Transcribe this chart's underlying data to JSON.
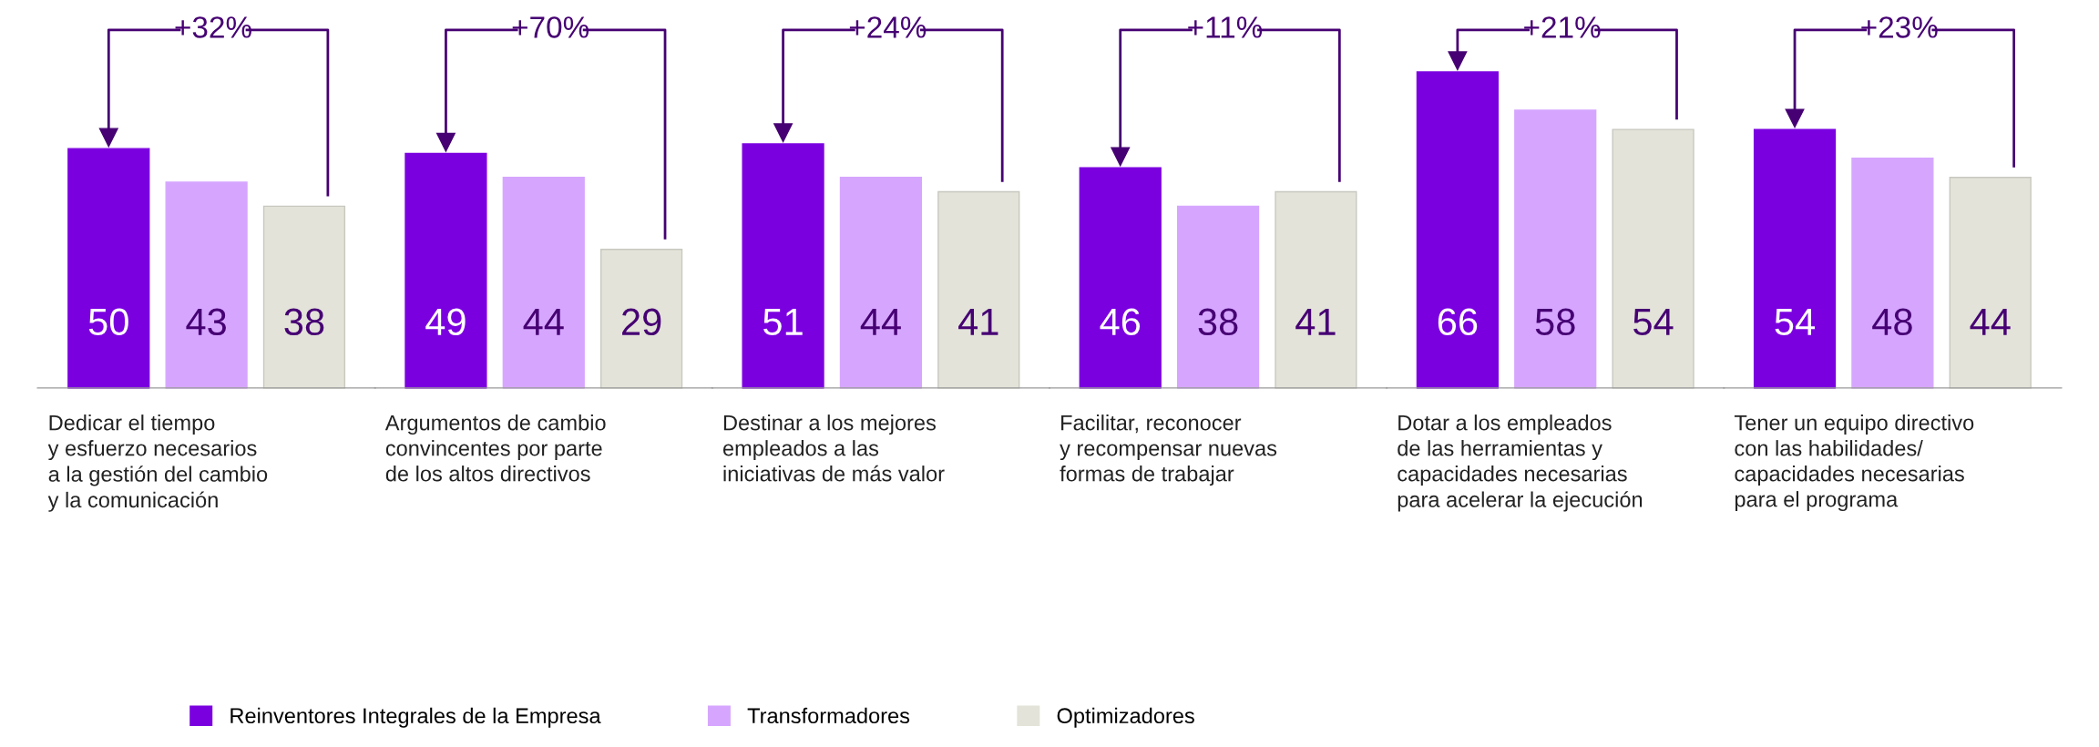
{
  "chart_data": {
    "type": "bar",
    "categories": [
      "Dedicar el tiempo\ny esfuerzo necesarios\na la gestión del cambio\ny la comunicación",
      "Argumentos de cambio\nconvincentes por parte\nde los altos directivos",
      "Destinar a los mejores\nempleados a las\niniciativas de más valor",
      "Facilitar, reconocer\ny recompensar nuevas\nformas de trabajar",
      "Dotar a los empleados\nde las herramientas y\ncapacidades necesarias\npara acelerar la ejecución",
      "Tener un equipo directivo\ncon las habilidades/\ncapacidades necesarias\npara el programa"
    ],
    "series": [
      {
        "name": "Reinventores Integrales de la Empresa",
        "color": "#7b00e0",
        "values": [
          50,
          49,
          51,
          46,
          66,
          54
        ]
      },
      {
        "name": "Transformadores",
        "color": "#d6a6ff",
        "values": [
          43,
          44,
          44,
          38,
          58,
          48
        ]
      },
      {
        "name": "Optimizadores",
        "color": "#e3e3d9",
        "values": [
          38,
          29,
          41,
          41,
          54,
          44
        ]
      }
    ],
    "data_labels": true,
    "legend": "bottom",
    "annotations": [
      "+32%",
      "+70%",
      "+24%",
      "+11%",
      "+21%",
      "+23%"
    ]
  }
}
